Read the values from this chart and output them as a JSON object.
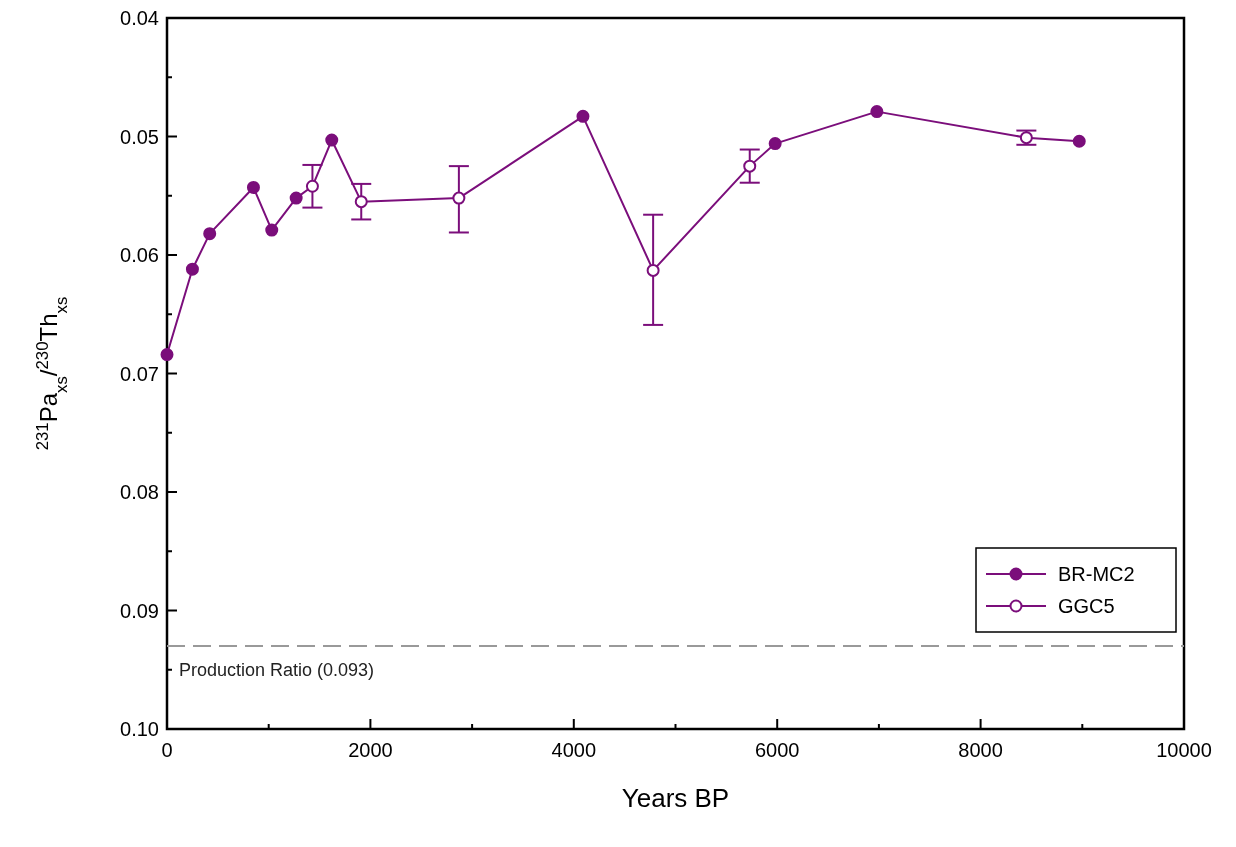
{
  "chart_data": {
    "type": "scatter",
    "xlabel": "Years BP",
    "ylabel": "$^{231}$Pa$_{xs}$/$^{230}$Th$_{xs}$",
    "xlim": [
      0,
      10000
    ],
    "xticks": [
      0,
      {
        "value": 1000,
        "label": null
      },
      2000,
      {
        "value": 3000,
        "label": null
      },
      4000,
      {
        "value": 5000,
        "label": null
      },
      6000,
      {
        "value": 7000,
        "label": null
      },
      8000,
      {
        "value": 9000,
        "label": null
      },
      10000
    ],
    "ylim": [
      0.1,
      0.04
    ],
    "yticks": [
      {
        "value": 0.04,
        "label": "0.04"
      },
      {
        "value": 0.045,
        "label": null
      },
      {
        "value": 0.05,
        "label": "0.05"
      },
      {
        "value": 0.055,
        "label": null
      },
      {
        "value": 0.06,
        "label": "0.06"
      },
      {
        "value": 0.065,
        "label": null
      },
      {
        "value": 0.07,
        "label": "0.07"
      },
      {
        "value": 0.075,
        "label": null
      },
      {
        "value": 0.08,
        "label": "0.08"
      },
      {
        "value": 0.085,
        "label": null
      },
      {
        "value": 0.09,
        "label": "0.09"
      },
      {
        "value": 0.095,
        "label": null
      },
      {
        "value": 0.1,
        "label": "0.10"
      }
    ],
    "grid": false,
    "legend": "bottom right",
    "series": [
      {
        "type": "line",
        "color": "#7b0e7b",
        "marker": "none",
        "x": [
          0,
          250,
          420,
          850,
          1030,
          1270,
          1430,
          1620,
          1910,
          2870,
          4090,
          4780,
          5730,
          5980,
          6980,
          8450,
          8970
        ],
        "values": [
          0.0684,
          0.0612,
          0.0582,
          0.0543,
          0.0579,
          0.0552,
          0.0542,
          0.0503,
          0.0555,
          0.0552,
          0.0483,
          0.0613,
          0.0525,
          0.0506,
          0.0479,
          0.0501,
          0.0504
        ]
      },
      {
        "name": "BR-MC2",
        "color": "#7b0e7b",
        "marker": "circle",
        "x": [
          0,
          250,
          420,
          850,
          1030,
          1270,
          1620,
          4090,
          5980,
          6980,
          8970
        ],
        "values": [
          0.0684,
          0.0612,
          0.0582,
          0.0543,
          0.0579,
          0.0552,
          0.0503,
          0.0483,
          0.0506,
          0.0479,
          0.0504
        ]
      },
      {
        "name": "GGC5",
        "color": "#7b0e7b",
        "marker": "circle",
        "x": [
          1430,
          1910,
          2870,
          4780,
          5730,
          8450
        ],
        "values": [
          0.0542,
          0.0555,
          0.0552,
          0.0613,
          0.0525,
          0.0501
        ],
        "errors": [
          [
            0.0524,
            0.056
          ],
          [
            0.054,
            0.057
          ],
          [
            0.0525,
            0.0581
          ],
          [
            0.0566,
            0.0659
          ],
          [
            0.0511,
            0.0539
          ],
          [
            0.0495,
            0.0507
          ]
        ]
      }
    ],
    "ref_lines": [
      {
        "axis": "y",
        "value": 0.093,
        "label": "Production Ratio (0.093)",
        "color": "#999999",
        "line_style": "dashed"
      }
    ]
  }
}
